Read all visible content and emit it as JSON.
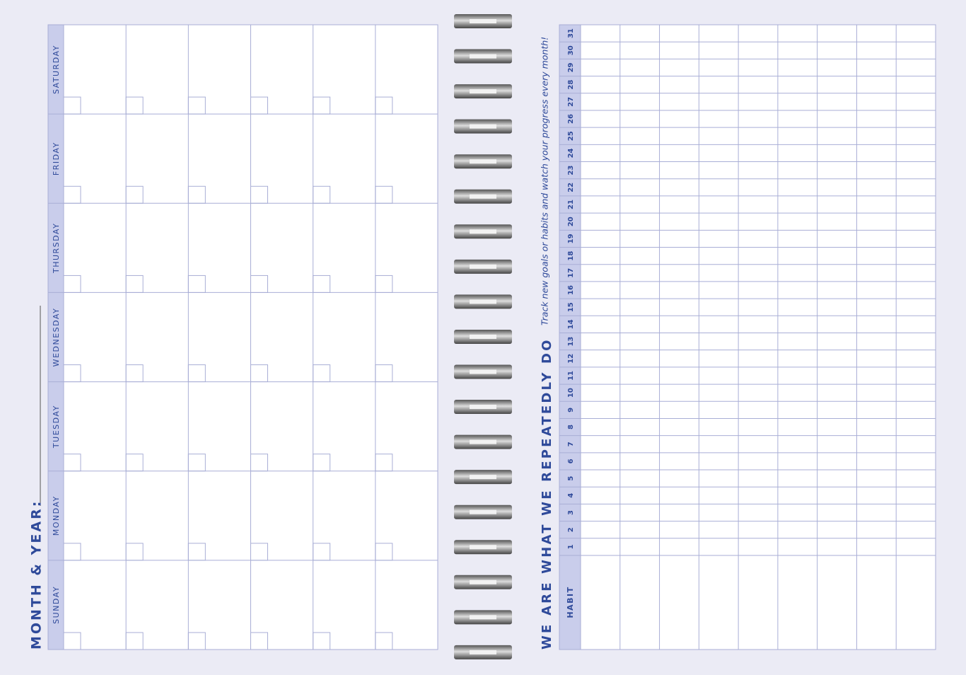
{
  "calendar": {
    "title": "MONTH & YEAR:",
    "days": [
      "SATURDAY",
      "FRIDAY",
      "THURSDAY",
      "WEDNESDAY",
      "TUESDAY",
      "MONDAY",
      "SUNDAY"
    ]
  },
  "tracker": {
    "title": "WE ARE WHAT WE REPEATEDLY DO",
    "subtitle": "Track new goals or habits and watch your progress every month!",
    "habit_label": "HABIT",
    "days": [
      1,
      2,
      3,
      4,
      5,
      6,
      7,
      8,
      9,
      10,
      11,
      12,
      13,
      14,
      15,
      16,
      17,
      18,
      19,
      20,
      21,
      22,
      23,
      24,
      25,
      26,
      27,
      28,
      29,
      30,
      31
    ]
  }
}
